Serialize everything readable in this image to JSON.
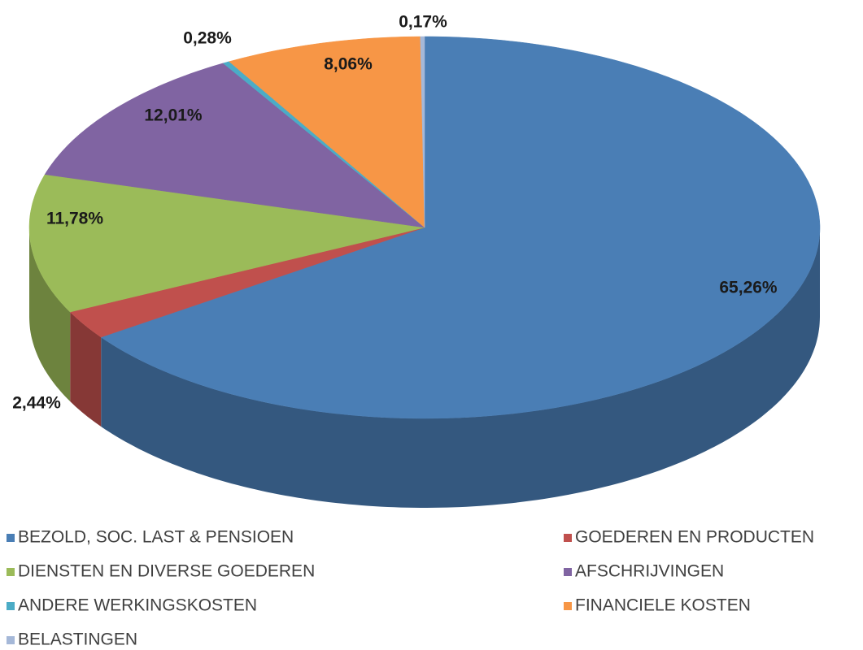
{
  "chart_data": {
    "type": "pie3d",
    "categories": [
      "BEZOLD, SOC. LAST & PENSIOEN",
      "GOEDEREN EN PRODUCTEN",
      "DIENSTEN EN DIVERSE GOEDEREN",
      "AFSCHRIJVINGEN",
      "ANDERE WERKINGSKOSTEN",
      "FINANCIELE KOSTEN",
      "BELASTINGEN"
    ],
    "values": [
      65.26,
      2.44,
      11.78,
      12.01,
      0.28,
      8.06,
      0.17
    ],
    "value_labels": [
      "65,26%",
      "2,44%",
      "11,78%",
      "12,01%",
      "0,28%",
      "8,06%",
      "0,17%"
    ],
    "colors": [
      "#4a7eb5",
      "#c0504d",
      "#9bbb59",
      "#8064a2",
      "#4bacc6",
      "#f79646",
      "#a5b8d8"
    ],
    "legend": "bottom"
  }
}
